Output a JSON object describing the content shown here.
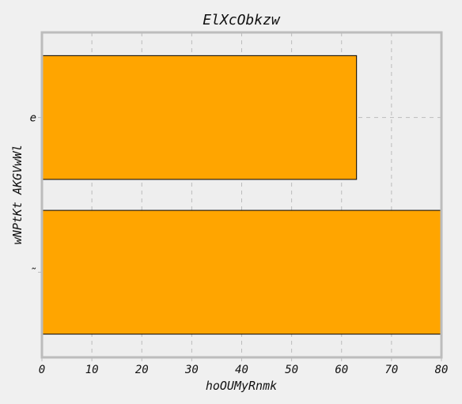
{
  "chart_data": {
    "type": "bar",
    "orientation": "horizontal",
    "title": "ElXcObkzw",
    "xlabel": "hoOUMyRnmk",
    "ylabel": "wNPtKt AKGVwWl",
    "categories": [
      "e",
      "˜"
    ],
    "values": [
      63,
      80
    ],
    "xlim": [
      0,
      80
    ],
    "xticks": [
      0,
      10,
      20,
      30,
      40,
      50,
      60,
      70,
      80
    ],
    "grid": true,
    "legend": "none",
    "colors": {
      "bar": "#ffa500",
      "bar_edge": "#000000",
      "plot_background": "#eeeeee",
      "page_background": "#f0f0f0",
      "frame": "#bcbcbc",
      "grid": "#bcbcbc"
    }
  }
}
